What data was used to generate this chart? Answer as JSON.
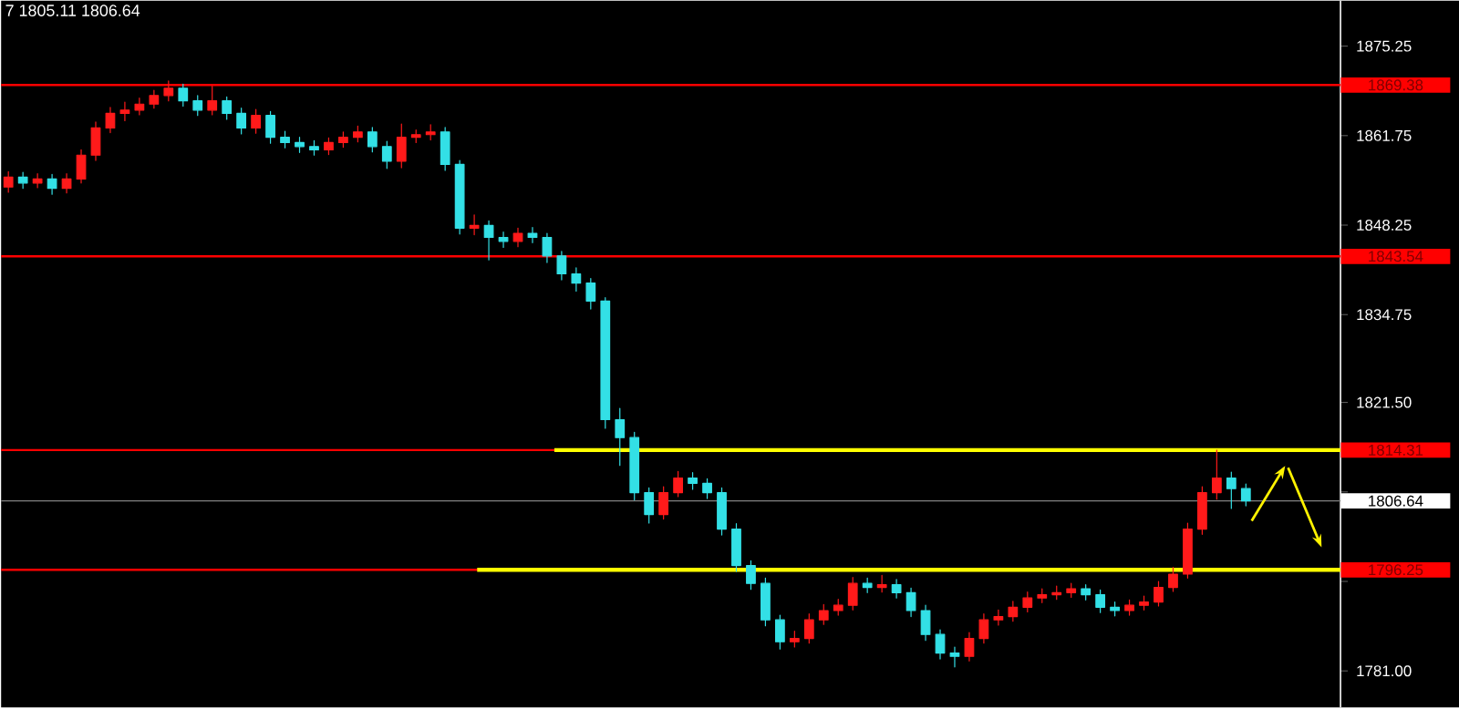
{
  "chart_data": {
    "type": "candlestick",
    "categories": [
      null,
      null,
      null,
      null,
      null,
      null,
      null,
      null,
      null,
      null,
      null,
      null,
      null,
      null,
      null,
      null,
      null,
      null,
      null,
      null,
      null,
      null,
      null,
      null,
      null,
      null,
      null,
      null,
      null,
      null,
      null,
      null,
      null,
      null,
      null,
      null,
      null,
      null,
      null,
      null,
      null,
      null,
      null,
      null,
      null,
      null,
      null,
      null,
      null,
      null,
      null,
      null,
      null,
      null,
      null,
      null,
      null,
      null,
      null,
      null,
      null,
      null,
      null,
      null,
      null,
      null,
      null,
      null,
      null,
      null,
      null,
      null,
      null,
      null,
      null,
      null,
      null,
      null,
      null,
      null,
      null,
      null,
      null,
      null,
      null,
      null,
      null,
      null,
      null,
      null,
      null,
      null
    ],
    "ohlc": [
      [
        1854.0,
        1856.3,
        1853.2,
        1855.5
      ],
      [
        1855.5,
        1856.2,
        1853.8,
        1854.6
      ],
      [
        1854.6,
        1856.0,
        1853.9,
        1855.2
      ],
      [
        1855.2,
        1855.9,
        1852.9,
        1853.8
      ],
      [
        1853.8,
        1856.0,
        1853.1,
        1855.2
      ],
      [
        1855.2,
        1859.6,
        1854.6,
        1858.8
      ],
      [
        1858.8,
        1863.8,
        1858.0,
        1862.9
      ],
      [
        1862.9,
        1866.0,
        1862.2,
        1865.1
      ],
      [
        1865.1,
        1866.8,
        1864.0,
        1865.6
      ],
      [
        1865.6,
        1867.4,
        1864.9,
        1866.5
      ],
      [
        1866.5,
        1868.6,
        1865.9,
        1867.8
      ],
      [
        1867.8,
        1870.0,
        1867.0,
        1868.9
      ],
      [
        1868.9,
        1869.5,
        1866.2,
        1867.0
      ],
      [
        1867.0,
        1867.8,
        1864.8,
        1865.6
      ],
      [
        1865.6,
        1869.2,
        1864.9,
        1867.0
      ],
      [
        1867.0,
        1867.6,
        1864.2,
        1865.1
      ],
      [
        1865.1,
        1865.9,
        1862.0,
        1862.9
      ],
      [
        1862.9,
        1865.7,
        1862.1,
        1864.8
      ],
      [
        1864.8,
        1865.4,
        1860.6,
        1861.5
      ],
      [
        1861.5,
        1862.4,
        1859.9,
        1860.7
      ],
      [
        1860.7,
        1861.5,
        1859.2,
        1860.1
      ],
      [
        1860.1,
        1861.0,
        1858.8,
        1859.6
      ],
      [
        1859.6,
        1861.4,
        1858.9,
        1860.7
      ],
      [
        1860.7,
        1862.3,
        1860.0,
        1861.5
      ],
      [
        1861.5,
        1863.2,
        1860.8,
        1862.3
      ],
      [
        1862.3,
        1863.0,
        1859.3,
        1860.1
      ],
      [
        1860.1,
        1860.9,
        1856.8,
        1857.9
      ],
      [
        1857.9,
        1863.5,
        1856.9,
        1861.5
      ],
      [
        1861.5,
        1862.6,
        1860.7,
        1861.9
      ],
      [
        1861.9,
        1863.4,
        1861.1,
        1862.3
      ],
      [
        1862.3,
        1863.0,
        1856.5,
        1857.4
      ],
      [
        1857.4,
        1858.0,
        1846.9,
        1847.8
      ],
      [
        1847.8,
        1849.8,
        1846.8,
        1848.2
      ],
      [
        1848.2,
        1848.9,
        1843.0,
        1846.4
      ],
      [
        1846.4,
        1847.2,
        1844.9,
        1845.8
      ],
      [
        1845.8,
        1847.8,
        1845.0,
        1847.0
      ],
      [
        1847.0,
        1847.9,
        1845.6,
        1846.4
      ],
      [
        1846.4,
        1847.0,
        1842.6,
        1843.6
      ],
      [
        1843.6,
        1844.3,
        1840.0,
        1840.9
      ],
      [
        1840.9,
        1841.8,
        1838.3,
        1839.5
      ],
      [
        1839.5,
        1840.2,
        1835.6,
        1836.8
      ],
      [
        1836.8,
        1837.3,
        1817.6,
        1818.9
      ],
      [
        1818.9,
        1820.6,
        1812.0,
        1816.2
      ],
      [
        1816.2,
        1817.0,
        1806.8,
        1807.9
      ],
      [
        1807.9,
        1808.6,
        1803.3,
        1804.6
      ],
      [
        1804.6,
        1808.8,
        1803.9,
        1807.9
      ],
      [
        1807.9,
        1811.1,
        1807.3,
        1810.1
      ],
      [
        1810.1,
        1810.9,
        1808.4,
        1809.3
      ],
      [
        1809.3,
        1810.0,
        1807.0,
        1807.9
      ],
      [
        1807.9,
        1808.6,
        1801.5,
        1802.4
      ],
      [
        1802.4,
        1803.2,
        1796.0,
        1796.9
      ],
      [
        1796.9,
        1797.6,
        1793.3,
        1794.2
      ],
      [
        1794.2,
        1795.0,
        1787.8,
        1788.7
      ],
      [
        1788.7,
        1789.4,
        1784.3,
        1785.4
      ],
      [
        1785.4,
        1787.0,
        1784.6,
        1785.9
      ],
      [
        1785.9,
        1789.6,
        1785.2,
        1788.7
      ],
      [
        1788.7,
        1791.0,
        1788.0,
        1790.1
      ],
      [
        1790.1,
        1791.8,
        1789.4,
        1790.9
      ],
      [
        1790.9,
        1795.1,
        1790.2,
        1794.2
      ],
      [
        1794.2,
        1795.0,
        1792.8,
        1793.6
      ],
      [
        1793.6,
        1795.4,
        1792.9,
        1794.0
      ],
      [
        1794.0,
        1794.8,
        1792.0,
        1792.8
      ],
      [
        1792.8,
        1793.5,
        1789.2,
        1790.1
      ],
      [
        1790.1,
        1790.9,
        1785.6,
        1786.5
      ],
      [
        1786.5,
        1787.2,
        1782.8,
        1783.7
      ],
      [
        1783.7,
        1784.6,
        1781.6,
        1783.2
      ],
      [
        1783.2,
        1786.8,
        1782.5,
        1785.9
      ],
      [
        1785.9,
        1789.6,
        1785.2,
        1788.7
      ],
      [
        1788.7,
        1790.2,
        1787.9,
        1789.2
      ],
      [
        1789.2,
        1791.5,
        1788.5,
        1790.6
      ],
      [
        1790.6,
        1792.9,
        1789.9,
        1792.0
      ],
      [
        1792.0,
        1793.4,
        1791.3,
        1792.5
      ],
      [
        1792.5,
        1793.8,
        1791.8,
        1792.8
      ],
      [
        1792.8,
        1794.2,
        1792.1,
        1793.4
      ],
      [
        1793.4,
        1794.0,
        1791.7,
        1792.5
      ],
      [
        1792.5,
        1793.2,
        1789.8,
        1790.6
      ],
      [
        1790.6,
        1791.4,
        1789.3,
        1790.1
      ],
      [
        1790.1,
        1791.7,
        1789.4,
        1790.9
      ],
      [
        1790.9,
        1792.3,
        1790.2,
        1791.4
      ],
      [
        1791.4,
        1794.5,
        1790.8,
        1793.6
      ],
      [
        1793.6,
        1796.6,
        1793.0,
        1795.6
      ],
      [
        1795.6,
        1803.3,
        1795.0,
        1802.4
      ],
      [
        1802.4,
        1808.8,
        1801.6,
        1807.9
      ],
      [
        1807.9,
        1814.3,
        1806.9,
        1810.1
      ],
      [
        1810.1,
        1811.0,
        1805.5,
        1808.5
      ],
      [
        1808.5,
        1809.2,
        1805.9,
        1806.64
      ],
      null,
      null,
      null,
      null,
      null,
      null
    ],
    "ylim": [
      1775.5,
      1882.1
    ],
    "yticks": [
      1875.25,
      1861.75,
      1848.25,
      1834.75,
      {
        "value": 1821.5,
        "label": "1821.50"
      },
      {
        "value": 1808.0,
        "label": null
      },
      {
        "value": 1794.5,
        "label": null
      },
      {
        "value": 1781.0,
        "label": "1781.00"
      }
    ],
    "ref_lines": [
      {
        "axis": "y",
        "value": 1869.38,
        "label": "1869.38",
        "color": "#ff0000"
      },
      {
        "axis": "y",
        "value": 1843.54,
        "label": "1843.54",
        "color": "#ff0000"
      },
      {
        "axis": "y",
        "value": 1814.31,
        "label": "1814.31",
        "color": "#ff0000"
      },
      {
        "axis": "y",
        "value": 1796.25,
        "label": "1796.25",
        "color": "#ff0000"
      },
      {
        "axis": "y",
        "value": 1806.64,
        "label": "1806.64",
        "color": "#808080"
      },
      {
        "axis": "y",
        "value": 1814.31,
        "color": "#ffff00"
      },
      {
        "axis": "y",
        "value": 1796.25,
        "color": "#ffff00"
      }
    ],
    "annotations": [
      "7 1805.11 1806.64"
    ],
    "grid": false
  }
}
